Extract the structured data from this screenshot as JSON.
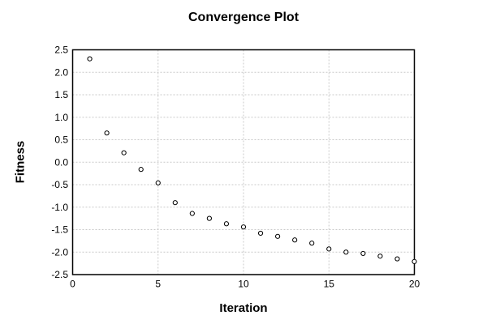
{
  "chart_data": {
    "type": "scatter",
    "title": "Convergence Plot",
    "xlabel": "Iteration",
    "ylabel": "Fitness",
    "x": [
      1,
      2,
      3,
      4,
      5,
      6,
      7,
      8,
      9,
      10,
      11,
      12,
      13,
      14,
      15,
      16,
      17,
      18,
      19,
      20
    ],
    "y": [
      2.3,
      0.65,
      0.21,
      -0.16,
      -0.46,
      -0.9,
      -1.14,
      -1.25,
      -1.37,
      -1.44,
      -1.58,
      -1.65,
      -1.73,
      -1.8,
      -1.93,
      -2.0,
      -2.03,
      -2.09,
      -2.15,
      -2.21
    ],
    "xlim": [
      0,
      20
    ],
    "ylim": [
      -2.5,
      2.5
    ],
    "xticks": {
      "values": [
        0,
        5,
        10,
        15,
        20
      ],
      "labels": [
        "0",
        "5",
        "10",
        "15",
        "20"
      ]
    },
    "yticks": {
      "values": [
        2.5,
        2.0,
        1.5,
        1.0,
        0.5,
        0.0,
        -0.5,
        -1.0,
        -1.5,
        -2.0,
        -2.5
      ],
      "labels": [
        "2.5",
        "2.0",
        "1.5",
        "1.0",
        "0.5",
        "0.0",
        "-0.5",
        "-1.0",
        "-1.5",
        "-2.0",
        "-2.5"
      ]
    },
    "grid": true,
    "legend": null,
    "marker": "open-circle",
    "colors": {
      "background": "#ffffff",
      "axis": "#000000",
      "grid": "#c9c9c9",
      "marker_stroke": "#000000",
      "marker_fill": "#ffffff",
      "text": "#000000"
    }
  }
}
